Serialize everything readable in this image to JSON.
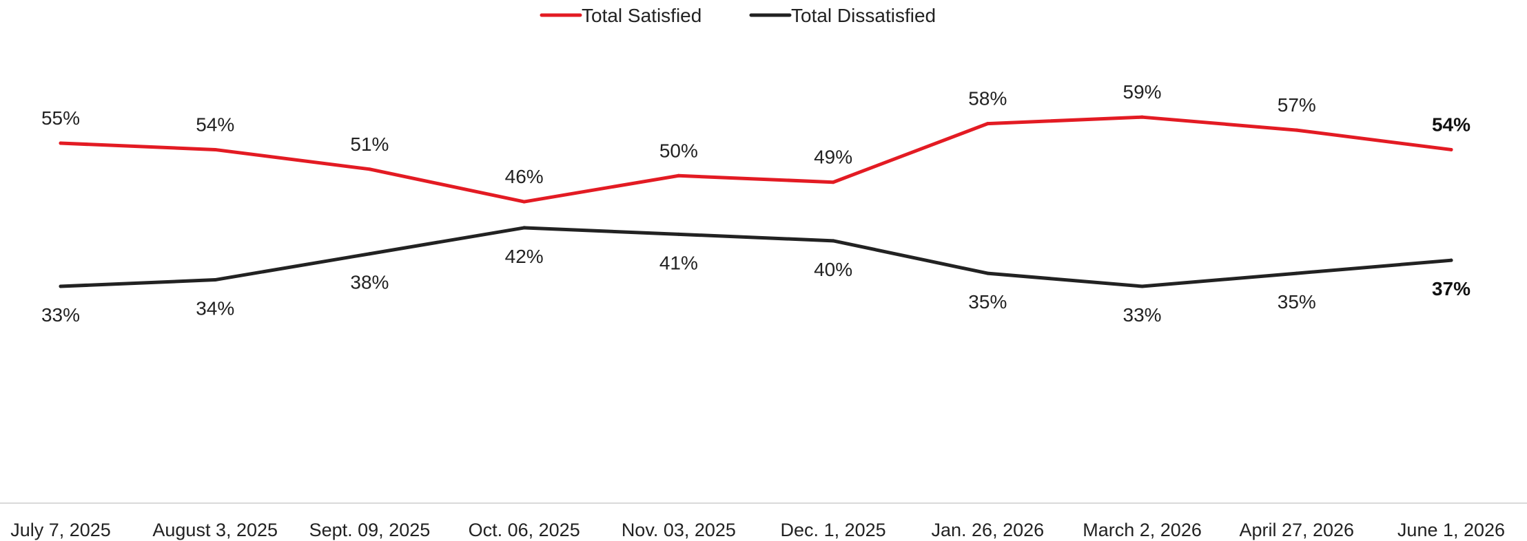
{
  "chart_data": {
    "type": "line",
    "categories": [
      "July 7, 2025",
      "August 3, 2025",
      "Sept. 09, 2025",
      "Oct. 06, 2025",
      "Nov. 03, 2025",
      "Dec. 1, 2025",
      "Jan. 26, 2026",
      "March 2, 2026",
      "April 27, 2026",
      "June 1, 2026"
    ],
    "series": [
      {
        "name": "Total Satisfied",
        "color": "#e31b23",
        "values": [
          55,
          54,
          51,
          46,
          50,
          49,
          58,
          59,
          57,
          54
        ],
        "labels": [
          "55%",
          "54%",
          "51%",
          "46%",
          "50%",
          "49%",
          "58%",
          "59%",
          "57%",
          "54%"
        ]
      },
      {
        "name": "Total Dissatisfied",
        "color": "#222222",
        "values": [
          33,
          34,
          38,
          42,
          41,
          40,
          35,
          33,
          35,
          37
        ],
        "labels": [
          "33%",
          "34%",
          "38%",
          "42%",
          "41%",
          "40%",
          "35%",
          "33%",
          "35%",
          "37%"
        ]
      }
    ],
    "ylim": [
      20,
      65
    ],
    "grid": false,
    "legend_position": "top-center",
    "last_point_bold": true
  }
}
